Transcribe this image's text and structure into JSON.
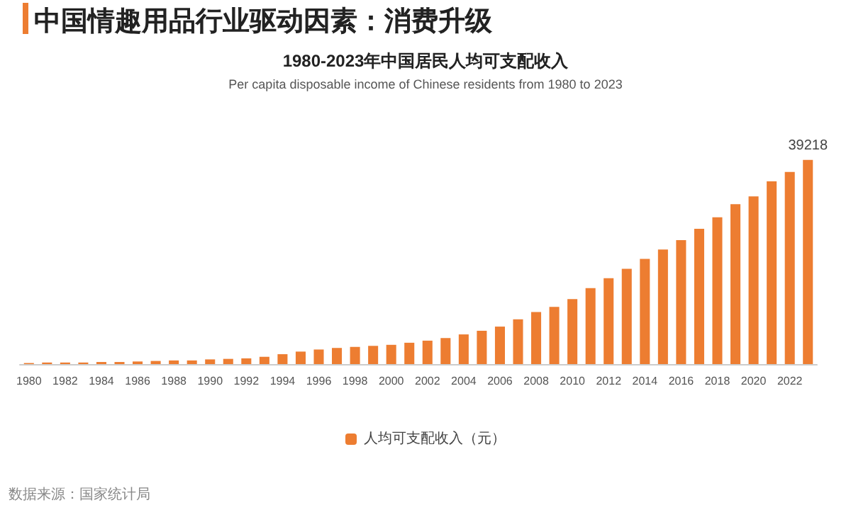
{
  "chart_data": {
    "type": "bar",
    "title": "1980-2023年中国居民人均可支配收入",
    "subtitle": "Per capita disposable income of Chinese residents from 1980 to 2023",
    "annotations": [
      "中国情趣用品行业驱动因素：消费升级",
      "数据来源：国家统计局"
    ],
    "categories": [
      "1980",
      null,
      "1982",
      null,
      "1984",
      null,
      "1986",
      null,
      "1988",
      null,
      "1990",
      null,
      "1992",
      null,
      "1994",
      null,
      "1996",
      null,
      "1998",
      null,
      "2000",
      null,
      "2002",
      null,
      "2004",
      null,
      "2006",
      null,
      "2008",
      null,
      "2010",
      null,
      "2012",
      null,
      "2014",
      null,
      "2016",
      null,
      "2018",
      null,
      "2020",
      null,
      "2022",
      null
    ],
    "series": [
      {
        "name": "人均可支配收入（元）",
        "color": "#ed7d31",
        "values": [
          200,
          300,
          300,
          300,
          400,
          400,
          500,
          600,
          700,
          700,
          900,
          1000,
          1100,
          1400,
          1900,
          2400,
          2800,
          3100,
          3300,
          3500,
          3700,
          4100,
          4500,
          5000,
          5700,
          6400,
          7200,
          8600,
          10000,
          11000,
          12500,
          14600,
          16500,
          18300,
          20200,
          22000,
          23800,
          26000,
          28200,
          30700,
          32200,
          35100,
          36900,
          39218
        ],
        "value_labels": [
          null,
          null,
          null,
          null,
          null,
          null,
          null,
          null,
          null,
          null,
          null,
          null,
          null,
          null,
          null,
          null,
          null,
          null,
          null,
          null,
          null,
          null,
          null,
          null,
          null,
          null,
          null,
          null,
          null,
          null,
          null,
          null,
          null,
          null,
          null,
          null,
          null,
          null,
          null,
          null,
          null,
          null,
          null,
          "39218"
        ]
      }
    ],
    "legend": "bottom"
  }
}
